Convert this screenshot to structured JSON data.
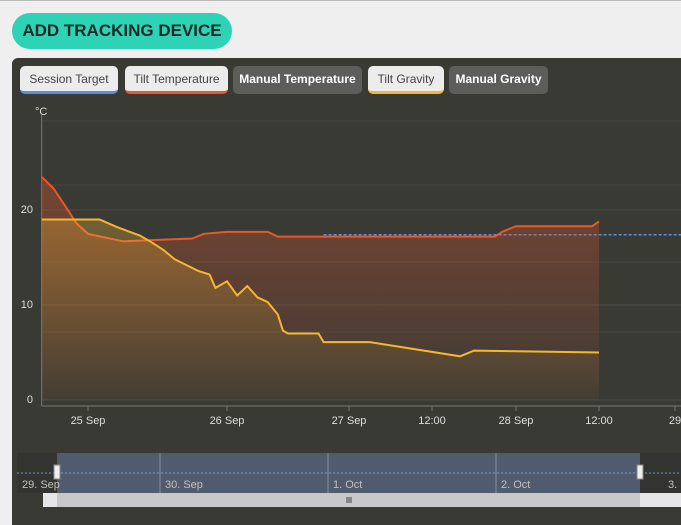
{
  "header": {
    "button": "ADD TRACKING DEVICE"
  },
  "chart_data": {
    "type": "line",
    "y_unit": "°C",
    "ylim": [
      0,
      30
    ],
    "yticks": [
      0,
      10,
      20
    ],
    "grid": true,
    "xlim": [
      "24 Sep 16:00",
      "29 Sep 01:00"
    ],
    "xticks": [
      {
        "value": "25 Sep 00:00",
        "label": "25 Sep"
      },
      {
        "value": "26 Sep 00:00",
        "label": "26 Sep"
      },
      {
        "value": "27 Sep 00:00",
        "label": "27 Sep"
      },
      {
        "value": "27 Sep 12:00",
        "label": "12:00"
      },
      {
        "value": "28 Sep 00:00",
        "label": "28 Sep"
      },
      {
        "value": "28 Sep 12:00",
        "label": "12:00"
      },
      {
        "value": "29 Sep 00:00",
        "label": "29"
      }
    ],
    "series": [
      {
        "name": "Session Target",
        "color": "#5b8fd9",
        "visible": true,
        "dashed": true,
        "x": [
          "26 Sep 19:00",
          "29 Sep 01:00"
        ],
        "values": [
          17.4,
          17.4
        ]
      },
      {
        "name": "Tilt Temperature",
        "color": "#e8582a",
        "visible": true,
        "x": [
          "24 Sep 16:00",
          "24 Sep 18:00",
          "24 Sep 20:00",
          "24 Sep 22:00",
          "25 Sep 00:00",
          "25 Sep 06:00",
          "25 Sep 18:00",
          "25 Sep 20:00",
          "26 Sep 00:00",
          "26 Sep 08:00",
          "26 Sep 10:00",
          "27 Sep 00:00",
          "27 Sep 12:00",
          "27 Sep 21:00",
          "27 Sep 22:00",
          "28 Sep 00:00",
          "28 Sep 11:00",
          "28 Sep 12:00"
        ],
        "values": [
          23.5,
          22.3,
          20.5,
          18.6,
          17.5,
          16.7,
          17.0,
          17.5,
          17.7,
          17.7,
          17.2,
          17.2,
          17.2,
          17.2,
          17.7,
          18.3,
          18.3,
          18.8
        ]
      },
      {
        "name": "Manual Temperature",
        "color": "#5d5d5a",
        "visible": false
      },
      {
        "name": "Tilt Gravity",
        "color": "#f5b731",
        "visible": true,
        "x": [
          "24 Sep 16:00",
          "25 Sep 02:00",
          "25 Sep 05:00",
          "25 Sep 09:00",
          "25 Sep 11:00",
          "25 Sep 13:00",
          "25 Sep 15:00",
          "25 Sep 17:00",
          "25 Sep 19:00",
          "25 Sep 21:00",
          "25 Sep 22:00",
          "26 Sep 00:00",
          "26 Sep 02:00",
          "26 Sep 04:00",
          "26 Sep 06:00",
          "26 Sep 08:00",
          "26 Sep 10:00",
          "26 Sep 11:00",
          "26 Sep 12:00",
          "26 Sep 18:00",
          "26 Sep 19:00",
          "27 Sep 03:00",
          "27 Sep 16:00",
          "27 Sep 18:00",
          "28 Sep 12:00"
        ],
        "values": [
          19.0,
          19.0,
          18.2,
          17.3,
          16.6,
          15.8,
          14.8,
          14.2,
          13.6,
          13.2,
          11.8,
          12.5,
          11.0,
          12.0,
          10.8,
          10.3,
          9.0,
          7.3,
          7.0,
          7.0,
          6.1,
          6.1,
          4.6,
          5.2,
          5.0
        ]
      },
      {
        "name": "Manual Gravity",
        "color": "#5d5d5a",
        "visible": false
      }
    ]
  },
  "navigator": {
    "labels": [
      "29. Sep",
      "30. Sep",
      "1. Oct",
      "2. Oct",
      "3."
    ]
  }
}
